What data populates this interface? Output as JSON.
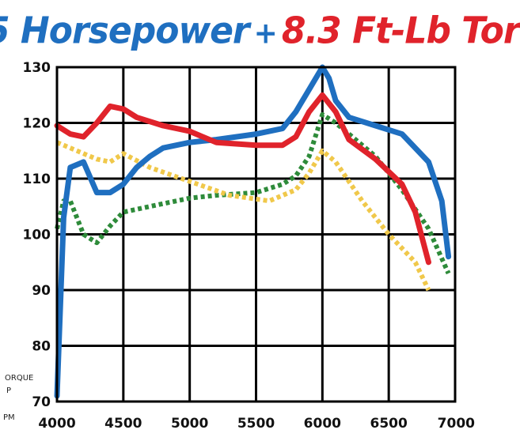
{
  "title": {
    "hp_text": "5 Horsepower",
    "plus": "+",
    "tq_text": "8.3 Ft-Lb Tor"
  },
  "axis_labels": {
    "legend_a": "ORQUE",
    "legend_b": "P",
    "legend_c": "PM"
  },
  "colors": {
    "hp_after": "#1f6fc0",
    "tq_after": "#e0232b",
    "hp_before": "#2e8b3a",
    "tq_before": "#f0c84a"
  },
  "chart_data": {
    "type": "line",
    "title": "",
    "xlabel": "",
    "ylabel": "",
    "xlim": [
      4000,
      7000
    ],
    "ylim": [
      70,
      130
    ],
    "xticks": [
      4000,
      4500,
      5000,
      5500,
      6000,
      6500,
      7000
    ],
    "yticks": [
      130,
      120,
      110,
      100,
      90,
      80,
      70
    ],
    "grid": true,
    "series": [
      {
        "color": "#1f6fc0",
        "style": "solid",
        "x": [
          4000,
          4050,
          4100,
          4200,
          4300,
          4400,
          4500,
          4600,
          4700,
          4800,
          5000,
          5200,
          5500,
          5700,
          5800,
          5900,
          6000,
          6050,
          6100,
          6200,
          6400,
          6600,
          6800,
          6900,
          6950
        ],
        "y": [
          71,
          103,
          112,
          113,
          107.5,
          107.5,
          109,
          112,
          114,
          115.5,
          116.5,
          117,
          118,
          119,
          122,
          126,
          130,
          128,
          124,
          121,
          119.5,
          118,
          113,
          106,
          96
        ]
      },
      {
        "color": "#e0232b",
        "style": "solid",
        "x": [
          4000,
          4100,
          4200,
          4300,
          4400,
          4500,
          4600,
          4800,
          5000,
          5200,
          5500,
          5700,
          5800,
          5900,
          6000,
          6100,
          6200,
          6400,
          6600,
          6700,
          6800
        ],
        "y": [
          119.5,
          118,
          117.5,
          120,
          123,
          122.5,
          121,
          119.5,
          118.5,
          116.5,
          116,
          116,
          117.5,
          122,
          125,
          122,
          117,
          113.5,
          109,
          104,
          95
        ]
      },
      {
        "color": "#2e8b3a",
        "style": "dotted",
        "x": [
          4000,
          4050,
          4100,
          4200,
          4300,
          4400,
          4500,
          4600,
          4800,
          5000,
          5200,
          5500,
          5700,
          5800,
          5900,
          6000,
          6100,
          6200,
          6400,
          6600,
          6800,
          6950
        ],
        "y": [
          101,
          106,
          106,
          100,
          98.5,
          101.5,
          104,
          104.5,
          105.5,
          106.5,
          107,
          107.5,
          109,
          110.5,
          114,
          121.5,
          120,
          118,
          114,
          108,
          101,
          93
        ]
      },
      {
        "color": "#f0c84a",
        "style": "dotted",
        "x": [
          4000,
          4100,
          4200,
          4300,
          4400,
          4500,
          4700,
          5000,
          5300,
          5600,
          5800,
          5900,
          6000,
          6100,
          6300,
          6500,
          6700,
          6800
        ],
        "y": [
          116.5,
          115.5,
          114.5,
          113.5,
          113,
          114.5,
          112,
          109.5,
          107,
          106,
          108,
          111,
          115,
          113,
          106,
          100,
          95,
          90
        ]
      }
    ]
  }
}
